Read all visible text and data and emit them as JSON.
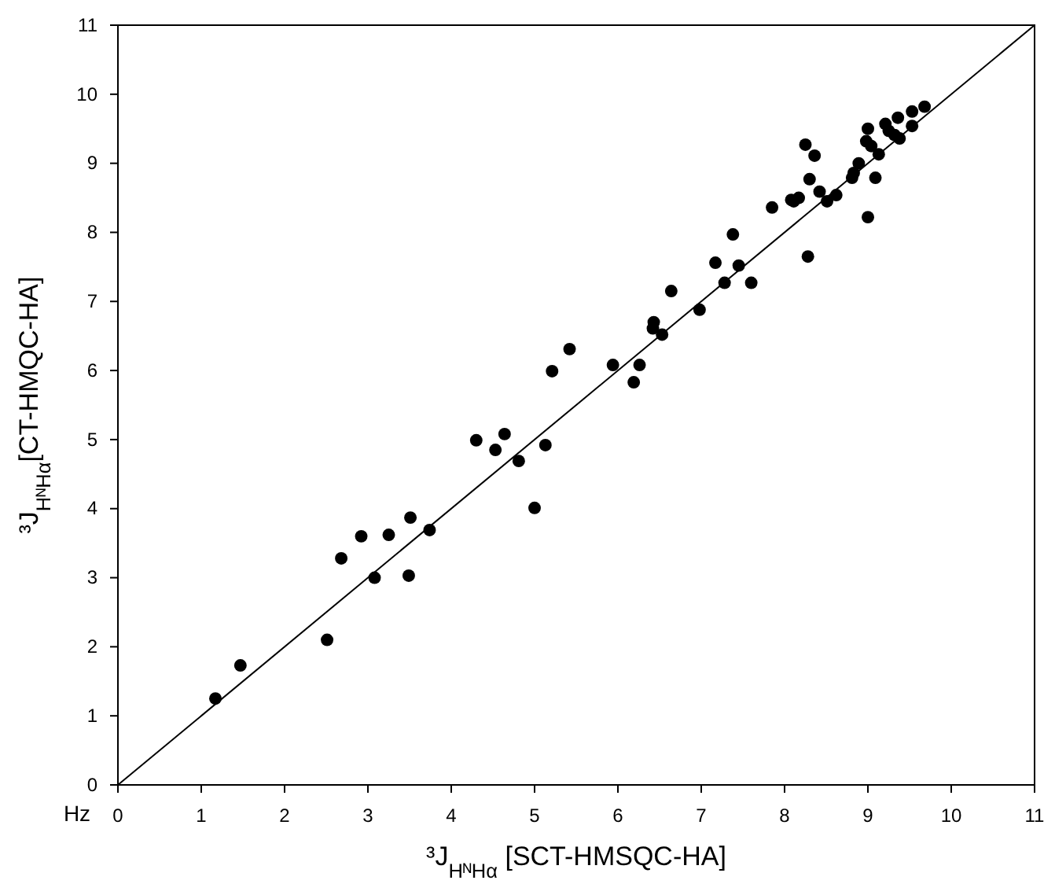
{
  "chart_data": {
    "type": "scatter",
    "xlabel": "³J$_{HᴺHα}$ [SCT-HMSQC-HA]",
    "ylabel": "³J$_{HᴺHα}$[CT-HMQC-HA]",
    "annotations": [
      "Hz"
    ],
    "xlim": [
      0,
      11
    ],
    "ylim": [
      0,
      11
    ],
    "xticks": [
      0,
      1,
      2,
      3,
      4,
      5,
      6,
      7,
      8,
      9,
      10,
      11
    ],
    "yticks": [
      0,
      1,
      2,
      3,
      4,
      5,
      6,
      7,
      8,
      9,
      10,
      11
    ],
    "grid": false,
    "series": [
      {
        "marker": "circle",
        "color": "#000000",
        "x": [
          1.17,
          1.47,
          2.51,
          2.68,
          2.92,
          3.08,
          3.25,
          3.49,
          3.51,
          3.74,
          5.0,
          4.3,
          4.53,
          4.64,
          4.81,
          5.13,
          5.21,
          5.42,
          5.94,
          6.19,
          6.26,
          6.43,
          6.42,
          6.53,
          6.64,
          6.98,
          7.17,
          7.28,
          7.45,
          7.38,
          7.6,
          7.85,
          8.08,
          8.11,
          8.17,
          8.25,
          8.36,
          8.3,
          8.28,
          8.42,
          8.51,
          8.62,
          8.81,
          8.83,
          8.89,
          9.0,
          9.09,
          9.0,
          8.98,
          9.04,
          9.13,
          9.21,
          9.25,
          9.36,
          9.32,
          9.38,
          9.53,
          9.53,
          9.68
        ],
        "values": [
          1.25,
          1.73,
          2.1,
          3.28,
          3.6,
          3.0,
          3.62,
          3.03,
          3.87,
          3.69,
          4.01,
          4.99,
          4.85,
          5.08,
          4.69,
          4.92,
          5.99,
          6.31,
          6.08,
          5.83,
          6.08,
          6.7,
          6.61,
          6.52,
          7.15,
          6.88,
          7.56,
          7.27,
          7.52,
          7.97,
          7.27,
          8.36,
          8.47,
          8.45,
          8.5,
          9.27,
          9.11,
          8.77,
          7.65,
          8.59,
          8.45,
          8.54,
          8.79,
          8.86,
          9.0,
          8.22,
          8.79,
          9.5,
          9.32,
          9.25,
          9.13,
          9.57,
          9.47,
          9.66,
          9.41,
          9.36,
          9.75,
          9.54,
          9.82
        ]
      },
      {
        "type": "line",
        "color": "#000000",
        "x": [
          0,
          11
        ],
        "values": [
          0,
          11
        ]
      }
    ]
  }
}
